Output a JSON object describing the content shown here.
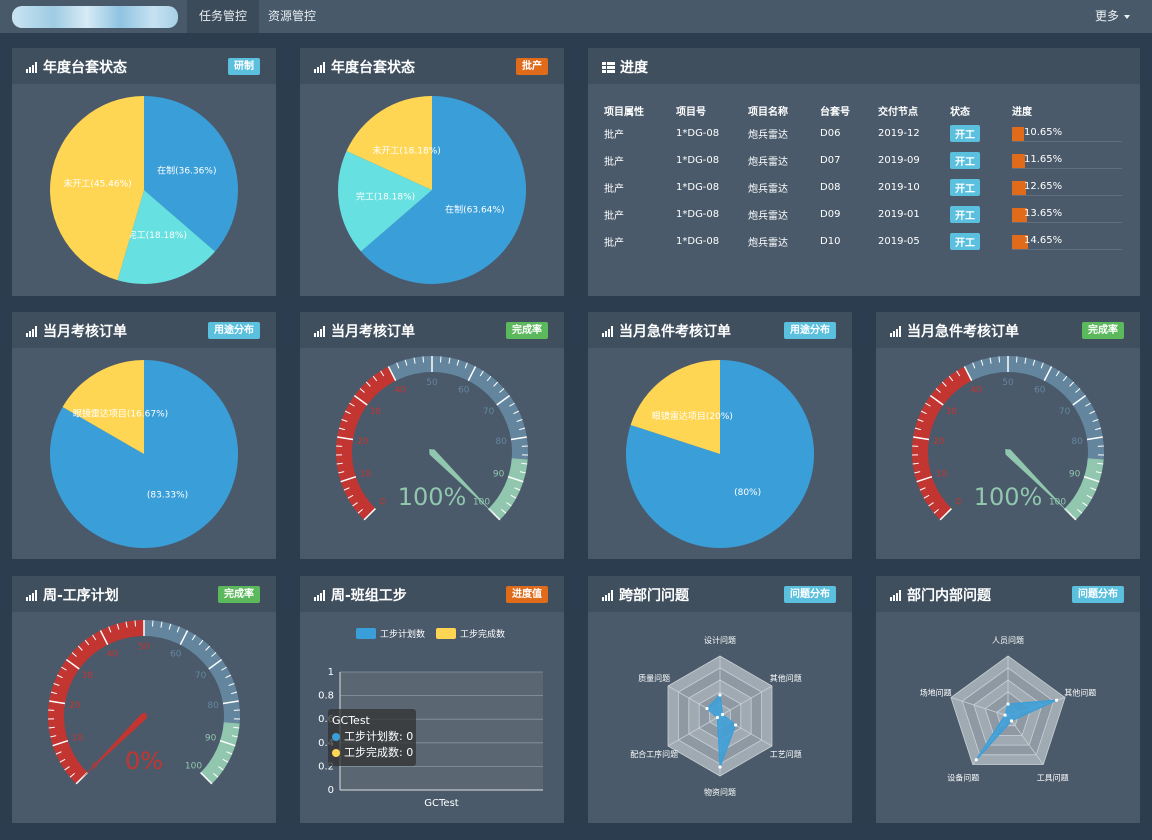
{
  "nav": {
    "tab1": "任务管控",
    "tab2": "资源管控",
    "more": "更多"
  },
  "colors": {
    "blue": "#3a9fd9",
    "yellow": "#ffd654",
    "cyan": "#66e0e0",
    "red": "#c23531",
    "slate": "#63869e",
    "mint": "#91c7ae",
    "orange": "#e06b1b",
    "badge_blue": "#5bc0de",
    "badge_green": "#5cb85c"
  },
  "panels": {
    "p1": {
      "title": "年度台套状态",
      "badge": "研制"
    },
    "p2": {
      "title": "年度台套状态",
      "badge": "批产"
    },
    "p3": {
      "title": "进度"
    },
    "p4": {
      "title": "当月考核订单",
      "badge": "用途分布"
    },
    "p5": {
      "title": "当月考核订单",
      "badge": "完成率"
    },
    "p6": {
      "title": "当月急件考核订单",
      "badge": "用途分布"
    },
    "p7": {
      "title": "当月急件考核订单",
      "badge": "完成率"
    },
    "p8": {
      "title": "周-工序计划",
      "badge": "完成率"
    },
    "p9": {
      "title": "周-班组工步",
      "badge": "进度值"
    },
    "p10": {
      "title": "跨部门问题",
      "badge": "问题分布"
    },
    "p11": {
      "title": "部门内部问题",
      "badge": "问题分布"
    }
  },
  "progress_table": {
    "headers": [
      "项目属性",
      "项目号",
      "项目名称",
      "台套号",
      "交付节点",
      "状态",
      "进度"
    ],
    "rows": [
      {
        "attr": "批产",
        "no": "1*DG-08",
        "name": "炮兵雷达",
        "set": "D06",
        "node": "2019-12",
        "status": "开工",
        "pct": "10.65%",
        "value": 10.65
      },
      {
        "attr": "批产",
        "no": "1*DG-08",
        "name": "炮兵雷达",
        "set": "D07",
        "node": "2019-09",
        "status": "开工",
        "pct": "11.65%",
        "value": 11.65
      },
      {
        "attr": "批产",
        "no": "1*DG-08",
        "name": "炮兵雷达",
        "set": "D08",
        "node": "2019-10",
        "status": "开工",
        "pct": "12.65%",
        "value": 12.65
      },
      {
        "attr": "批产",
        "no": "1*DG-08",
        "name": "炮兵雷达",
        "set": "D09",
        "node": "2019-01",
        "status": "开工",
        "pct": "13.65%",
        "value": 13.65
      },
      {
        "attr": "批产",
        "no": "1*DG-08",
        "name": "炮兵雷达",
        "set": "D10",
        "node": "2019-05",
        "status": "开工",
        "pct": "14.65%",
        "value": 14.65
      }
    ]
  },
  "chart_data": [
    {
      "type": "pie",
      "id": "pie1",
      "start": "12 o'clock clockwise",
      "slices": [
        {
          "label": "在制(36.36%)",
          "value": 36.36,
          "color": "#3a9fd9"
        },
        {
          "label": "完工(18.18%)",
          "value": 18.18,
          "color": "#66e0e0"
        },
        {
          "label": "未开工(45.46%)",
          "value": 45.46,
          "color": "#ffd654"
        }
      ]
    },
    {
      "type": "pie",
      "id": "pie2",
      "start": "12 o'clock clockwise",
      "slices": [
        {
          "label": "在制(63.64%)",
          "value": 63.64,
          "color": "#3a9fd9"
        },
        {
          "label": "完工(18.18%)",
          "value": 18.18,
          "color": "#66e0e0"
        },
        {
          "label": "未开工(18.18%)",
          "value": 18.18,
          "color": "#ffd654"
        }
      ]
    },
    {
      "type": "pie",
      "id": "pie3",
      "start": "12 o'clock clockwise",
      "slices": [
        {
          "label": "(83.33%)",
          "value": 83.33,
          "color": "#3a9fd9"
        },
        {
          "label": "眼镜雷达项目(16.67%)",
          "value": 16.67,
          "color": "#ffd654"
        }
      ]
    },
    {
      "type": "pie",
      "id": "pie4",
      "start": "12 o'clock clockwise",
      "slices": [
        {
          "label": "(80%)",
          "value": 80,
          "color": "#3a9fd9"
        },
        {
          "label": "眼镜雷达项目(20%)",
          "value": 20,
          "color": "#ffd654"
        }
      ]
    },
    {
      "type": "gauge",
      "id": "g1",
      "min": 0,
      "max": 100,
      "value": 100,
      "label": "100%",
      "ticks": [
        "0",
        "10",
        "20",
        "30",
        "40",
        "50",
        "60",
        "70",
        "80",
        "90",
        "100"
      ],
      "bands": [
        {
          "to": 40,
          "color": "#c23531"
        },
        {
          "to": 85,
          "color": "#63869e"
        },
        {
          "to": 100,
          "color": "#91c7ae"
        }
      ]
    },
    {
      "type": "gauge",
      "id": "g2",
      "min": 0,
      "max": 100,
      "value": 100,
      "label": "100%",
      "ticks": [
        "0",
        "10",
        "20",
        "30",
        "40",
        "50",
        "60",
        "70",
        "80",
        "90",
        "100"
      ],
      "bands": [
        {
          "to": 40,
          "color": "#c23531"
        },
        {
          "to": 85,
          "color": "#63869e"
        },
        {
          "to": 100,
          "color": "#91c7ae"
        }
      ]
    },
    {
      "type": "gauge",
      "id": "g3",
      "min": 0,
      "max": 100,
      "value": 0,
      "label": "0%",
      "ticks": [
        "0",
        "10",
        "20",
        "30",
        "40",
        "50",
        "60",
        "70",
        "80",
        "90",
        "100"
      ],
      "bands": [
        {
          "to": 50,
          "color": "#c23531"
        },
        {
          "to": 85,
          "color": "#63869e"
        },
        {
          "to": 100,
          "color": "#91c7ae"
        }
      ]
    },
    {
      "type": "bar",
      "id": "bar1",
      "categories": [
        "GCTest"
      ],
      "series": [
        {
          "name": "工步计划数",
          "values": [
            0
          ],
          "color": "#3a9fd9"
        },
        {
          "name": "工步完成数",
          "values": [
            0
          ],
          "color": "#ffd654"
        }
      ],
      "yticks": [
        "0",
        "0.2",
        "0.4",
        "0.6",
        "0.8",
        "1"
      ],
      "ylim": [
        0,
        1
      ]
    },
    {
      "type": "radar",
      "id": "radar1",
      "indicators": [
        "设计问题",
        "其他问题",
        "工艺问题",
        "物资问题",
        "配合工序问题",
        "质量问题"
      ],
      "values": [
        0.35,
        0.05,
        0.3,
        0.85,
        0.05,
        0.25
      ],
      "color": "#3a9fd9"
    },
    {
      "type": "radar",
      "id": "radar2",
      "indicators": [
        "人员问题",
        "其他问题",
        "工具问题",
        "设备问题",
        "场地问题"
      ],
      "values": [
        0.2,
        0.85,
        0.1,
        0.9,
        0.05
      ],
      "color": "#3a9fd9"
    }
  ],
  "tooltip": {
    "title": "GCTest",
    "line1": "工步计划数: 0",
    "line2": "工步完成数: 0"
  }
}
